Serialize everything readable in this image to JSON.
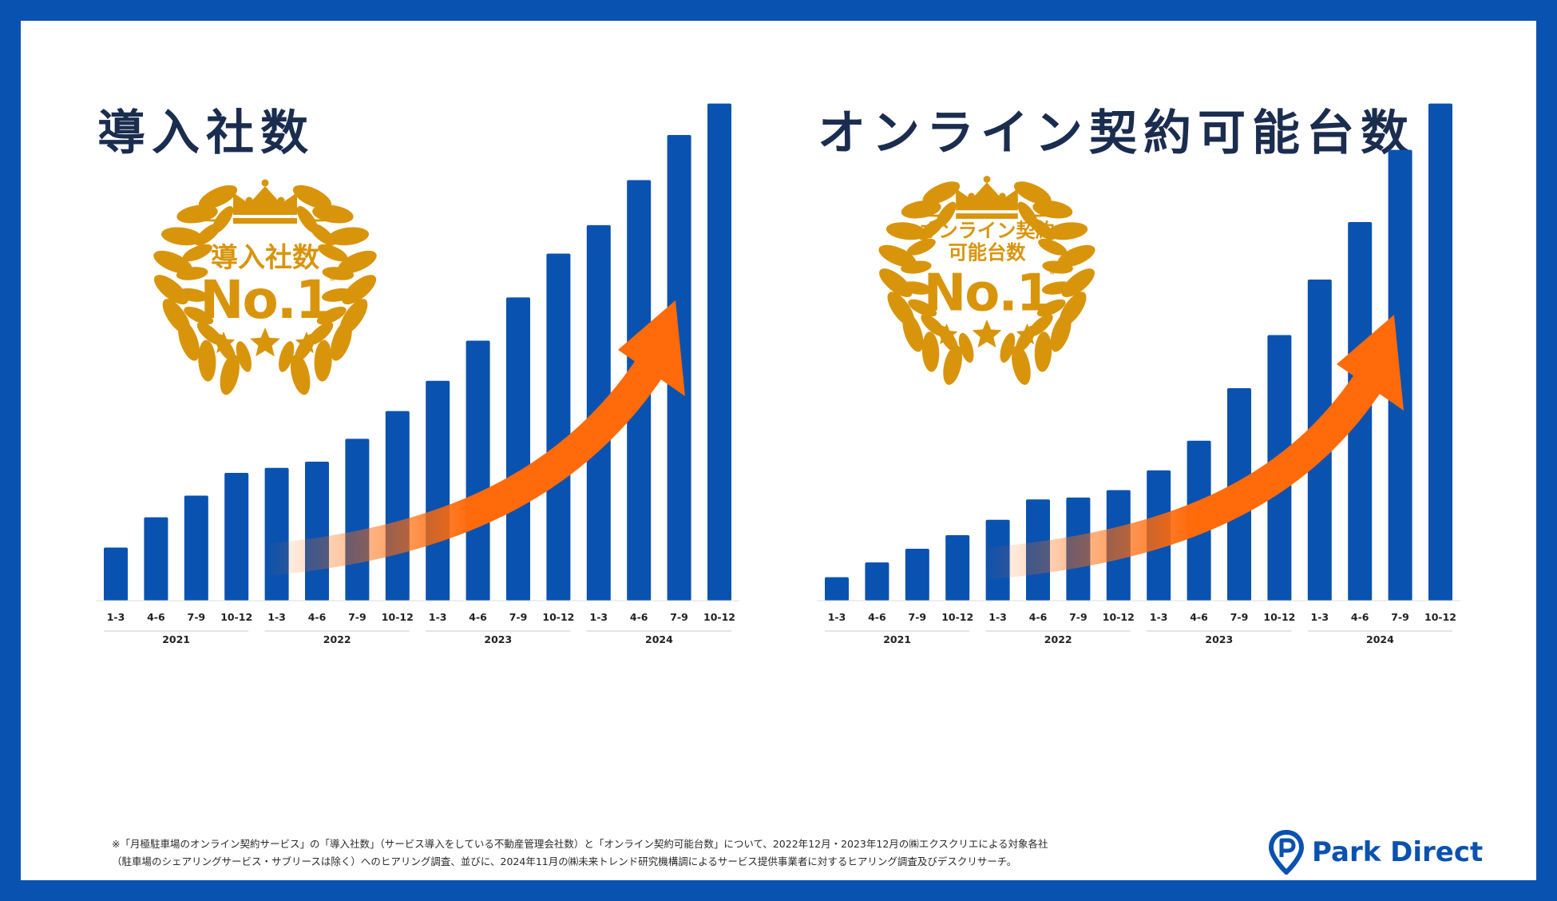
{
  "colors": {
    "frame": "#0a52b0",
    "bar": "#0a52b0",
    "title": "#1b2d4f",
    "gold": "#d8950c",
    "arrow": "#ff6a0a"
  },
  "badge_number": "No.1",
  "badge_note_mark": "※",
  "footnote": {
    "line1": "※「月極駐車場のオンライン契約サービス」の「導入社数」（サービス導入をしている不動産管理会社数）と「オンライン契約可能台数」について、2022年12月・2023年12月の㈱エクスクリエによる対象各社",
    "line2": "（駐車場のシェアリングサービス・サブリースは除く）へのヒアリング調査、並びに、2024年11月の㈱未来トレンド研究機構調によるサービス提供事業者に対するヒアリング調査及びデスクリサーチ。"
  },
  "logo": {
    "icon": "map-pin-p-icon",
    "text": "Park Direct"
  },
  "chart_data": [
    {
      "type": "bar",
      "title": "導入社数",
      "badge_text": [
        "導入社数"
      ],
      "categories": [
        "1-3",
        "4-6",
        "7-9",
        "10-12",
        "1-3",
        "4-6",
        "7-9",
        "10-12",
        "1-3",
        "4-6",
        "7-9",
        "10-12",
        "1-3",
        "4-6",
        "7-9",
        "10-12"
      ],
      "year_groups": [
        "2021",
        "2022",
        "2023",
        "2024"
      ],
      "values": [
        8.6,
        13.5,
        17.0,
        20.7,
        21.5,
        22.5,
        26.2,
        30.7,
        35.6,
        42.1,
        49.1,
        56.2,
        60.8,
        68.1,
        75.4,
        80.5
      ],
      "ylim": [
        0,
        82
      ],
      "grid": false,
      "legend": "none",
      "value_axis_labels": false
    },
    {
      "type": "bar",
      "title": "オンライン契約可能台数",
      "badge_text": [
        "オンライン契約",
        "可能台数"
      ],
      "categories": [
        "1-3",
        "4-6",
        "7-9",
        "10-12",
        "1-3",
        "4-6",
        "7-9",
        "10-12",
        "1-3",
        "4-6",
        "7-9",
        "10-12",
        "1-3",
        "4-6",
        "7-9",
        "10-12"
      ],
      "year_groups": [
        "2021",
        "2022",
        "2023",
        "2024"
      ],
      "values": [
        3.8,
        6.2,
        8.4,
        10.6,
        13.1,
        16.4,
        16.7,
        17.9,
        21.1,
        25.9,
        34.4,
        43.0,
        52.0,
        61.3,
        73.0,
        80.5
      ],
      "ylim": [
        0,
        82
      ],
      "grid": false,
      "legend": "none",
      "value_axis_labels": false
    }
  ]
}
